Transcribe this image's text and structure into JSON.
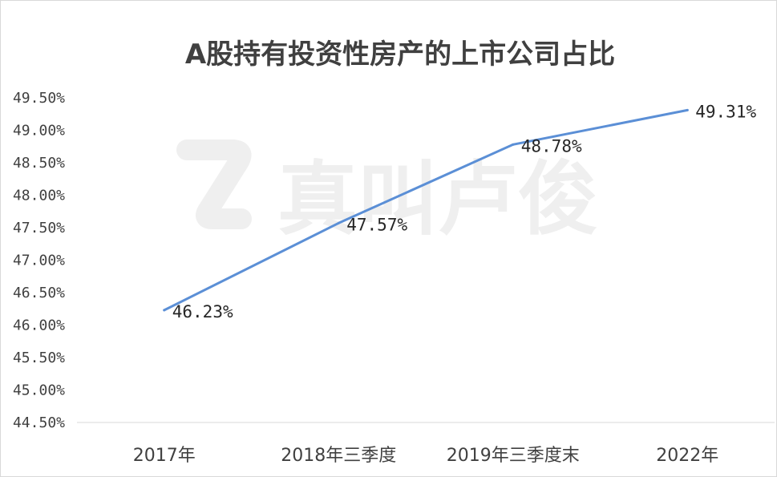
{
  "chart_data": {
    "type": "line",
    "title": "A股持有投资性房产的上市公司占比",
    "categories": [
      "2017年",
      "2018年三季度",
      "2019年三季度末",
      "2022年"
    ],
    "series": [
      {
        "values": [
          46.23,
          47.57,
          48.78,
          49.31
        ],
        "data_labels": [
          "46.23%",
          "47.57%",
          "48.78%",
          "49.31%"
        ],
        "color": "#5b8fd6"
      }
    ],
    "ylim": [
      44.5,
      49.5
    ],
    "yticks": [
      "49.50%",
      "49.00%",
      "48.50%",
      "48.00%",
      "47.50%",
      "47.00%",
      "46.50%",
      "46.00%",
      "45.50%",
      "45.00%",
      "44.50%"
    ],
    "ytick_values": [
      49.5,
      49.0,
      48.5,
      48.0,
      47.5,
      47.0,
      46.5,
      46.0,
      45.5,
      45.0,
      44.5
    ],
    "grid": false,
    "legend": "none",
    "xlabel": "",
    "ylabel": ""
  },
  "watermark": {
    "text": "真叫卢俊",
    "color": "#efefef"
  }
}
